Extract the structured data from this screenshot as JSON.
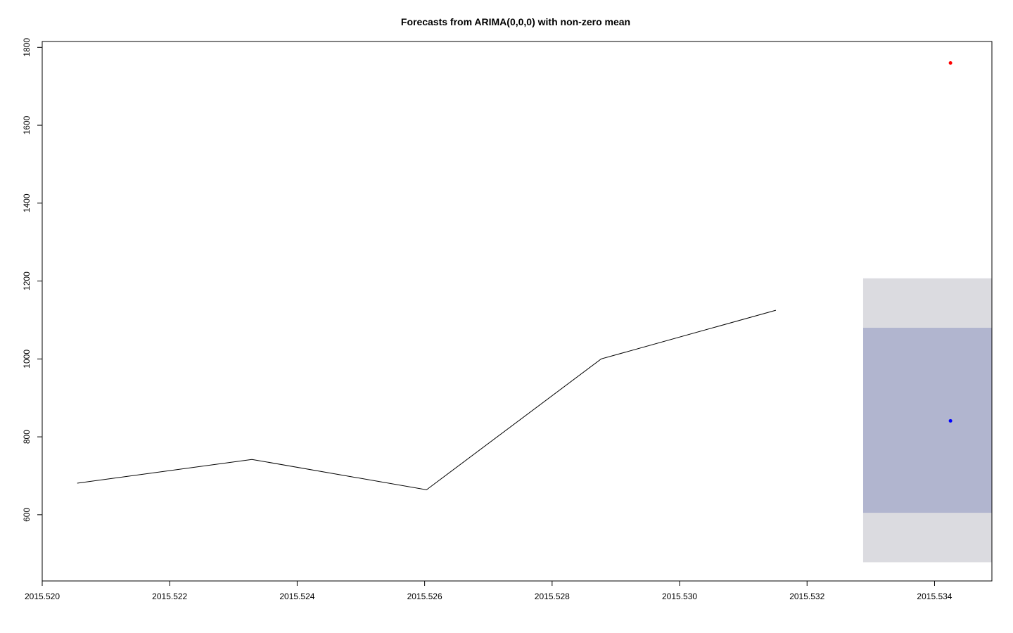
{
  "chart_data": {
    "type": "line",
    "title": "Forecasts from ARIMA(0,0,0) with non-zero mean",
    "xlabel": "",
    "ylabel": "",
    "xlim": [
      2015.52,
      2015.5349
    ],
    "ylim": [
      430,
      1815
    ],
    "x_ticks": [
      "2015.520",
      "2015.522",
      "2015.524",
      "2015.526",
      "2015.528",
      "2015.530",
      "2015.532",
      "2015.534"
    ],
    "x_tick_values": [
      2015.52,
      2015.522,
      2015.524,
      2015.526,
      2015.528,
      2015.53,
      2015.532,
      2015.534
    ],
    "y_ticks": [
      "600",
      "800",
      "1000",
      "1200",
      "1400",
      "1600",
      "1800"
    ],
    "y_tick_values": [
      600,
      800,
      1000,
      1200,
      1400,
      1600,
      1800
    ],
    "grid": false,
    "series": [
      {
        "x": [
          2015.52055,
          2015.52329,
          2015.52603,
          2015.52877,
          2015.53151
        ],
        "y": [
          681,
          742,
          664,
          1000,
          1125
        ]
      }
    ],
    "forecast": {
      "x": 2015.53425,
      "mean": 841,
      "x_start": 2015.53288,
      "x_end": 2015.5349,
      "lo80": 605,
      "hi80": 1080,
      "lo95": 478,
      "hi95": 1207
    },
    "actual_point": {
      "x": 2015.53425,
      "y": 1760
    },
    "colors": {
      "line": "#000000",
      "band95": "#dbdbe0",
      "band80": "#b1b5cf",
      "forecast_point": "#0000ff",
      "actual_point": "#ff0000",
      "axis": "#000000"
    }
  }
}
